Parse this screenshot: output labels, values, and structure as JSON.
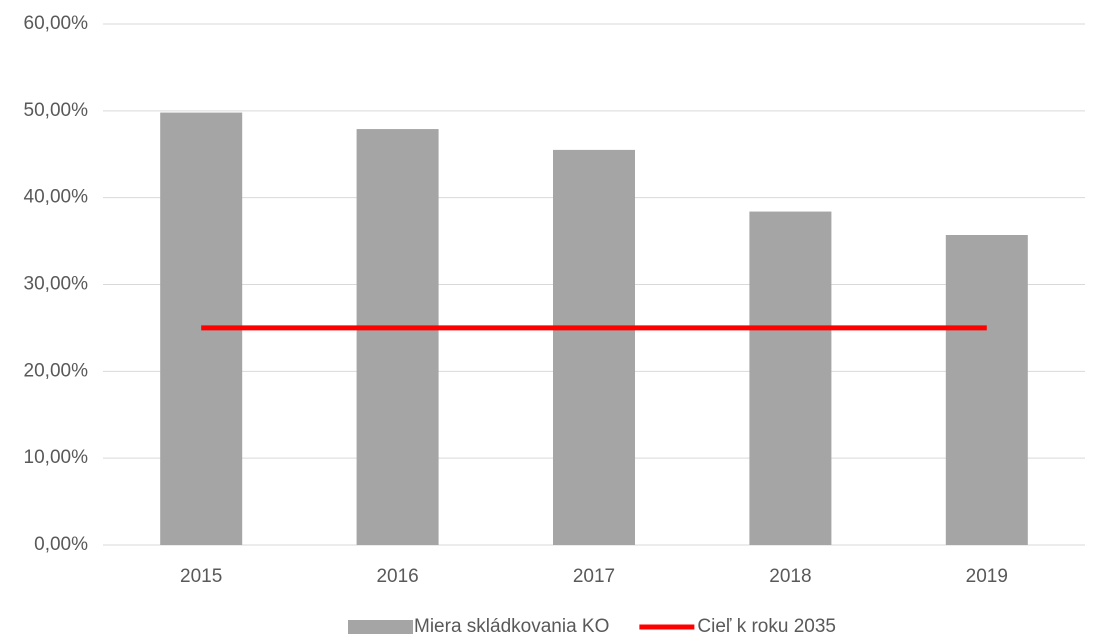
{
  "chart_data": {
    "type": "bar",
    "categories": [
      "2015",
      "2016",
      "2017",
      "2018",
      "2019"
    ],
    "series": [
      {
        "name": "Miera skládkovania KO",
        "type": "bar",
        "color": "#a5a5a5",
        "values": [
          49.8,
          47.9,
          45.5,
          38.4,
          35.7
        ]
      },
      {
        "name": "Cieľ k roku 2035",
        "type": "line",
        "color": "#ff0000",
        "values": [
          25,
          25,
          25,
          25,
          25
        ]
      }
    ],
    "ylim": [
      0,
      60
    ],
    "yticks": [
      {
        "value": 0,
        "label": "0,00%"
      },
      {
        "value": 10,
        "label": "10,00%"
      },
      {
        "value": 20,
        "label": "20,00%"
      },
      {
        "value": 30,
        "label": "30,00%"
      },
      {
        "value": 40,
        "label": "40,00%"
      },
      {
        "value": 50,
        "label": "50,00%"
      },
      {
        "value": 60,
        "label": "60,00%"
      }
    ],
    "grid": true,
    "legend": "bottom"
  }
}
